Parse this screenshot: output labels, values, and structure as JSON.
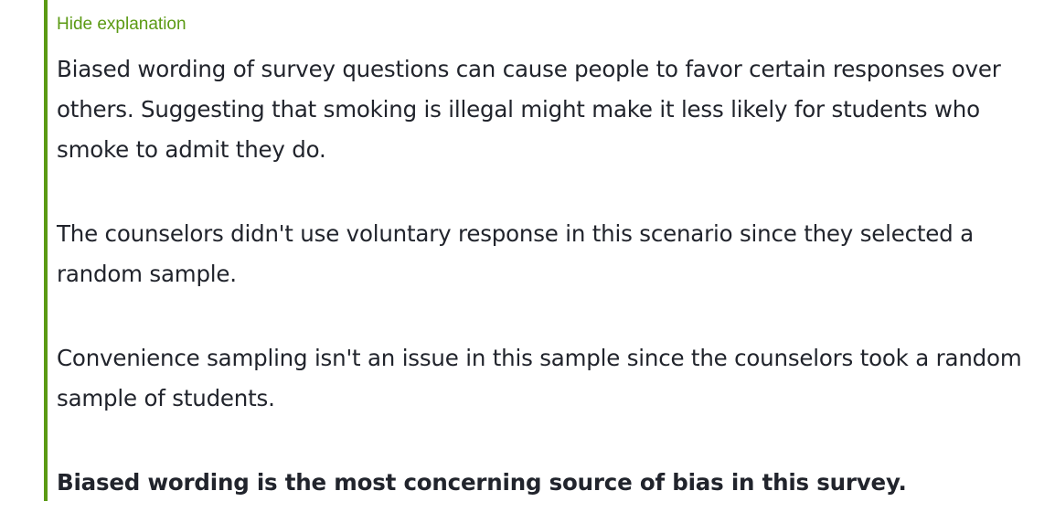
{
  "explanation": {
    "toggle_label": "Hide explanation",
    "paragraphs": [
      "Biased wording of survey questions can cause people to favor certain responses over others. Suggesting that smoking is illegal might make it less likely for students who smoke to admit they do.",
      "The counselors didn't use voluntary response in this scenario since they selected a random sample.",
      "Convenience sampling isn't an issue in this sample since the counselors took a random sample of students."
    ],
    "conclusion": "Biased wording is the most concerning source of bias in this survey."
  },
  "colors": {
    "accent": "#5b9a14",
    "text": "#21242c",
    "background": "#ffffff"
  }
}
